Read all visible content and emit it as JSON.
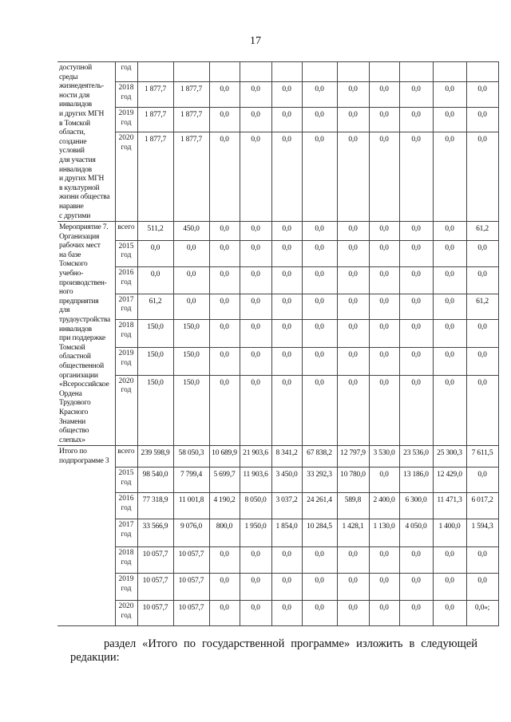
{
  "page_number": "17",
  "blocks": [
    {
      "desc": "доступной\nсреды\nжизнедеятель-\nности для\nинвалидов\nи других МГН\nв Томской\nобласти,\nсоздание\nусловий\nдля участия\nинвалидов\nи других МГН\nв культурной\nжизни общества\nнаравне\nс другими",
      "rows": [
        {
          "year": "год",
          "values": [
            "",
            "",
            "",
            "",
            "",
            "",
            "",
            "",
            "",
            "",
            ""
          ]
        },
        {
          "year": "2018 год",
          "values": [
            "1 877,7",
            "1 877,7",
            "0,0",
            "0,0",
            "0,0",
            "0,0",
            "0,0",
            "0,0",
            "0,0",
            "0,0",
            "0,0"
          ]
        },
        {
          "year": "2019 год",
          "values": [
            "1 877,7",
            "1 877,7",
            "0,0",
            "0,0",
            "0,0",
            "0,0",
            "0,0",
            "0,0",
            "0,0",
            "0,0",
            "0,0"
          ]
        },
        {
          "year": "2020 год",
          "values": [
            "1 877,7",
            "1 877,7",
            "0,0",
            "0,0",
            "0,0",
            "0,0",
            "0,0",
            "0,0",
            "0,0",
            "0,0",
            "0,0"
          ]
        }
      ]
    },
    {
      "desc": "Мероприятие 7.\nОрганизация\nрабочих мест\nна базе\nТомского\nучебно-\nпроизводствен-\nного\nпредприятия\nдля\nтрудоустройства\nинвалидов\nпри поддержке\nТомской\nобластной\nобщественной\nорганизации\n«Всероссийское\nОрдена\nТрудового\nКрасного\nЗнамени\nобщество\nслепых»",
      "rows": [
        {
          "year": "всего",
          "values": [
            "511,2",
            "450,0",
            "0,0",
            "0,0",
            "0,0",
            "0,0",
            "0,0",
            "0,0",
            "0,0",
            "0,0",
            "61,2"
          ]
        },
        {
          "year": "2015 год",
          "values": [
            "0,0",
            "0,0",
            "0,0",
            "0,0",
            "0,0",
            "0,0",
            "0,0",
            "0,0",
            "0,0",
            "0,0",
            "0,0"
          ]
        },
        {
          "year": "2016 год",
          "values": [
            "0,0",
            "0,0",
            "0,0",
            "0,0",
            "0,0",
            "0,0",
            "0,0",
            "0,0",
            "0,0",
            "0,0",
            "0,0"
          ]
        },
        {
          "year": "2017 год",
          "values": [
            "61,2",
            "0,0",
            "0,0",
            "0,0",
            "0,0",
            "0,0",
            "0,0",
            "0,0",
            "0,0",
            "0,0",
            "61,2"
          ]
        },
        {
          "year": "2018 год",
          "values": [
            "150,0",
            "150,0",
            "0,0",
            "0,0",
            "0,0",
            "0,0",
            "0,0",
            "0,0",
            "0,0",
            "0,0",
            "0,0"
          ]
        },
        {
          "year": "2019 год",
          "values": [
            "150,0",
            "150,0",
            "0,0",
            "0,0",
            "0,0",
            "0,0",
            "0,0",
            "0,0",
            "0,0",
            "0,0",
            "0,0"
          ]
        },
        {
          "year": "2020 год",
          "values": [
            "150,0",
            "150,0",
            "0,0",
            "0,0",
            "0,0",
            "0,0",
            "0,0",
            "0,0",
            "0,0",
            "0,0",
            "0,0"
          ]
        }
      ]
    },
    {
      "desc": "Итого по\nподпрограмме 3",
      "rows": [
        {
          "year": "всего",
          "values": [
            "239 598,9",
            "58 050,3",
            "10 689,9",
            "21 903,6",
            "8 341,2",
            "67 838,2",
            "12 797,9",
            "3 530,0",
            "23 536,0",
            "25 300,3",
            "7 611,5"
          ]
        },
        {
          "year": "2015 год",
          "values": [
            "98 540,0",
            "7 799,4",
            "5 699,7",
            "11 903,6",
            "3 450,0",
            "33 292,3",
            "10 780,0",
            "0,0",
            "13 186,0",
            "12 429,0",
            "0,0"
          ]
        },
        {
          "year": "2016 год",
          "values": [
            "77 318,9",
            "11 001,8",
            "4 190,2",
            "8 050,0",
            "3 037,2",
            "24 261,4",
            "589,8",
            "2 400,0",
            "6 300,0",
            "11 471,3",
            "6 017,2"
          ]
        },
        {
          "year": "2017 год",
          "values": [
            "33 566,9",
            "9 076,0",
            "800,0",
            "1 950,0",
            "1 854,0",
            "10 284,5",
            "1 428,1",
            "1 130,0",
            "4 050,0",
            "1 400,0",
            "1 594,3"
          ]
        },
        {
          "year": "2018 год",
          "values": [
            "10 057,7",
            "10 057,7",
            "0,0",
            "0,0",
            "0,0",
            "0,0",
            "0,0",
            "0,0",
            "0,0",
            "0,0",
            "0,0"
          ]
        },
        {
          "year": "2019 год",
          "values": [
            "10 057,7",
            "10 057,7",
            "0,0",
            "0,0",
            "0,0",
            "0,0",
            "0,0",
            "0,0",
            "0,0",
            "0,0",
            "0,0"
          ]
        },
        {
          "year": "2020 год",
          "values": [
            "10 057,7",
            "10 057,7",
            "0,0",
            "0,0",
            "0,0",
            "0,0",
            "0,0",
            "0,0",
            "0,0",
            "0,0",
            "0,0»;"
          ]
        }
      ]
    }
  ],
  "paragraph": "раздел «Итого по государственной программе» изложить в следующей редакции:"
}
